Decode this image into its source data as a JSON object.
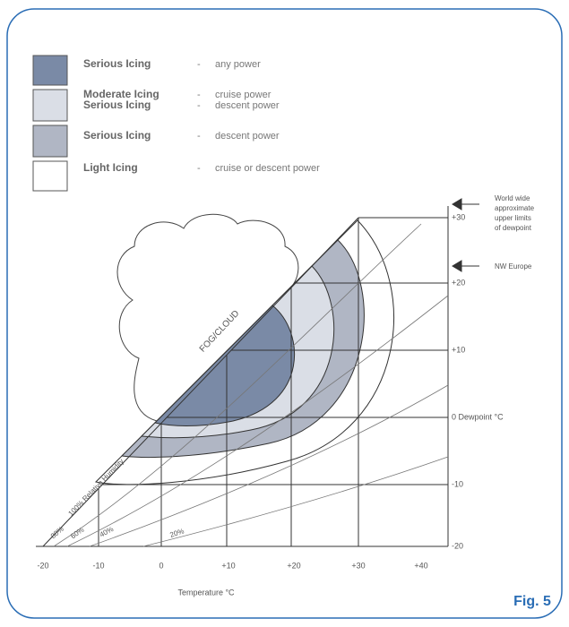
{
  "legend": {
    "separator": "-",
    "items": [
      {
        "lines": [
          {
            "label": "Serious Icing",
            "detail": "any power"
          }
        ]
      },
      {
        "lines": [
          {
            "label": "Moderate Icing",
            "detail": "cruise power"
          },
          {
            "label": "Serious Icing",
            "detail": "descent power"
          }
        ]
      },
      {
        "lines": [
          {
            "label": "Serious Icing",
            "detail": "descent power"
          }
        ]
      },
      {
        "lines": [
          {
            "label": "Light Icing",
            "detail": "cruise or descent power"
          }
        ]
      }
    ]
  },
  "x_axis": {
    "title": "Temperature °C",
    "ticks": [
      "-20",
      "-10",
      "0",
      "+10",
      "+20",
      "+30",
      "+40"
    ]
  },
  "y_axis": {
    "ticks": [
      "+30",
      "+20",
      "+10",
      "0 Dewpoint °C",
      "-10",
      "-20"
    ]
  },
  "humidity_labels": [
    "100% Relative Humidity",
    "80%",
    "60%",
    "40%",
    "20%"
  ],
  "cloud_label": "FOG/CLOUD",
  "limits": [
    {
      "lines": [
        "World wide",
        "approximate",
        "upper limits",
        "of dewpoint"
      ]
    },
    {
      "lines": [
        "NW Europe"
      ]
    }
  ],
  "figure_label": "Fig. 5"
}
